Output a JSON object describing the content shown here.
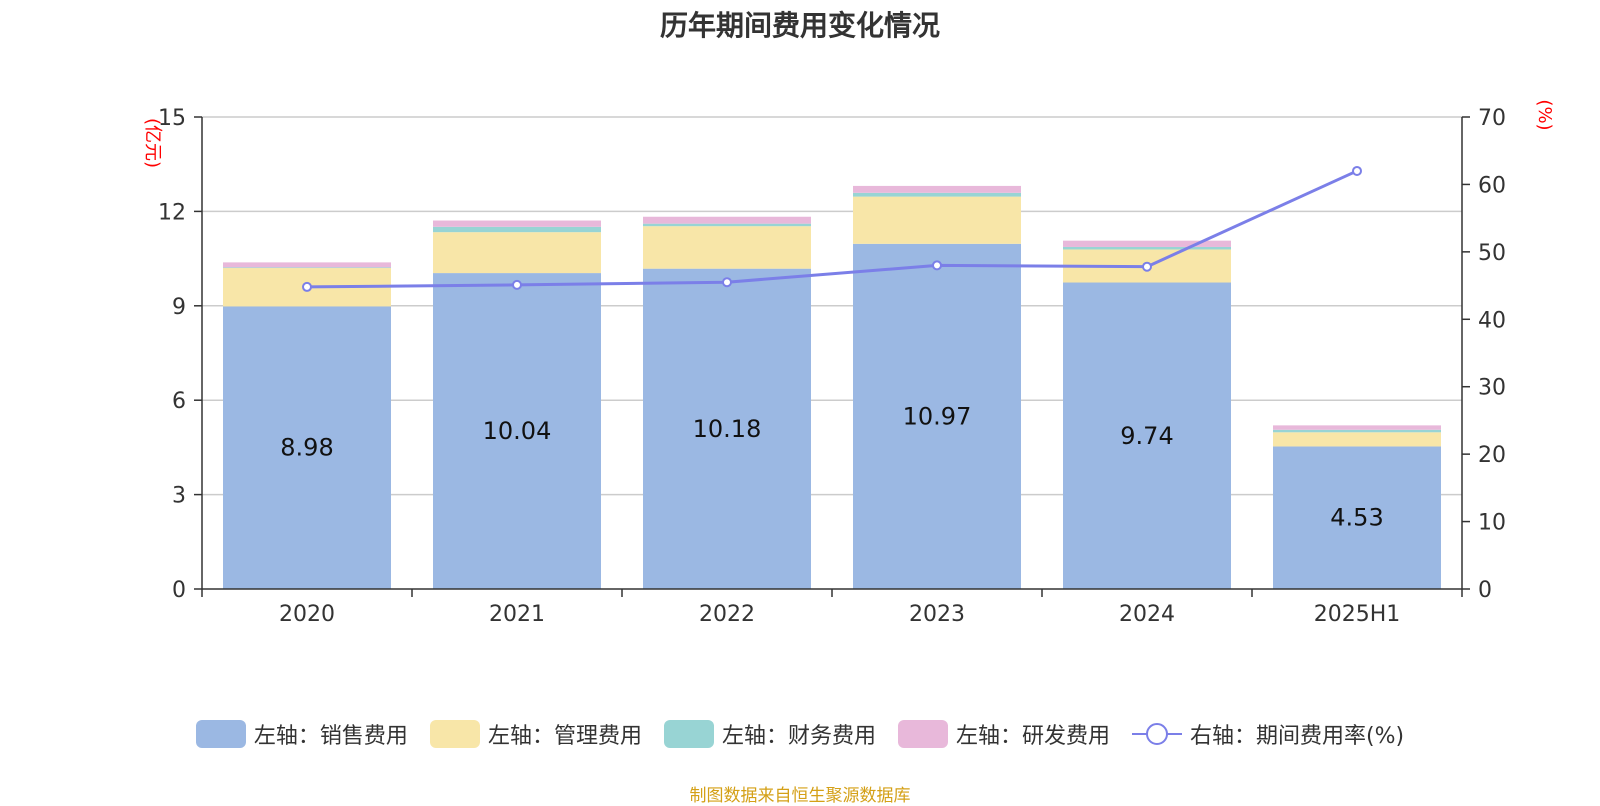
{
  "chart_data": {
    "type": "bar",
    "title": "历年期间费用变化情况",
    "categories": [
      "2020",
      "2021",
      "2022",
      "2023",
      "2024",
      "2025H1"
    ],
    "left_axis": {
      "unit": "(亿元)",
      "ylim": [
        0,
        15
      ],
      "ticks": [
        "0",
        "3",
        "6",
        "9",
        "12",
        "15"
      ]
    },
    "right_axis": {
      "unit": "(%)",
      "ylim": [
        0,
        70
      ],
      "ticks": [
        "0",
        "10",
        "20",
        "30",
        "40",
        "50",
        "60",
        "70"
      ]
    },
    "series": [
      {
        "name": "左轴：销售费用",
        "type": "bar",
        "axis": "left",
        "color": "#9BB8E3",
        "values": [
          8.98,
          10.04,
          10.18,
          10.97,
          9.74,
          4.53
        ],
        "labels": [
          "8.98",
          "10.04",
          "10.18",
          "10.97",
          "9.74",
          "4.53"
        ]
      },
      {
        "name": "左轴：管理费用",
        "type": "bar",
        "axis": "left",
        "color": "#F8E6A8",
        "values": [
          1.22,
          1.3,
          1.35,
          1.5,
          1.05,
          0.45
        ]
      },
      {
        "name": "左轴：财务费用",
        "type": "bar",
        "axis": "left",
        "color": "#98D4D4",
        "values": [
          0.02,
          0.17,
          0.08,
          0.12,
          0.08,
          0.08
        ]
      },
      {
        "name": "左轴：研发费用",
        "type": "bar",
        "axis": "left",
        "color": "#E8B8DA",
        "values": [
          0.16,
          0.2,
          0.22,
          0.22,
          0.2,
          0.14
        ]
      },
      {
        "name": "右轴：期间费用率(%)",
        "type": "line",
        "axis": "right",
        "color": "#7B7FE8",
        "values": [
          44.8,
          45.1,
          45.5,
          48.0,
          47.8,
          62.0
        ]
      }
    ],
    "grid": true,
    "legend_position": "bottom"
  },
  "source_note": "制图数据来自恒生聚源数据库"
}
